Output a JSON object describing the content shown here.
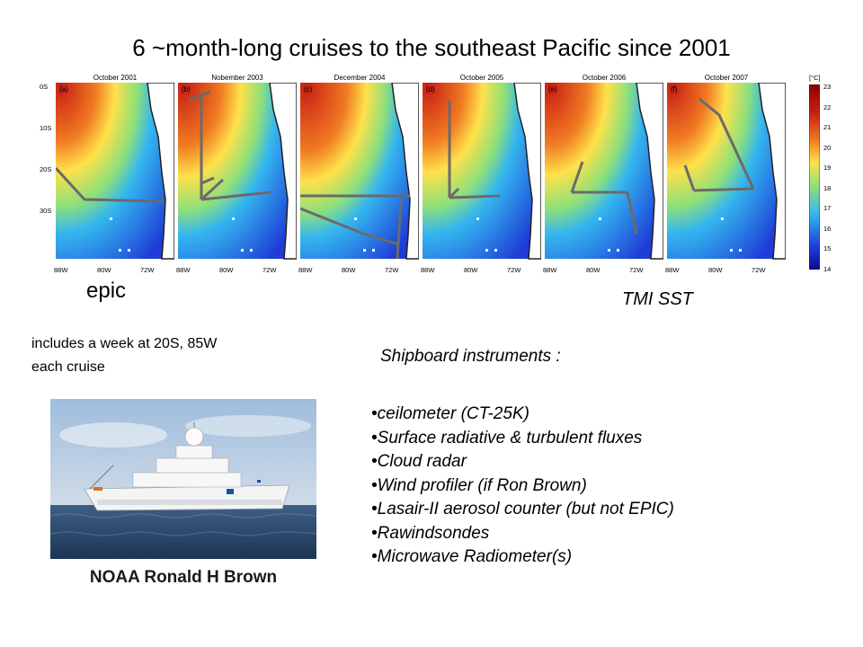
{
  "title": "6 ~month-long cruises to the southeast Pacific since 2001",
  "maps": {
    "panels": [
      {
        "label": "(a)",
        "date": "October 2001"
      },
      {
        "label": "(b)",
        "date": "Nobember 2003"
      },
      {
        "label": "(c)",
        "date": "December 2004"
      },
      {
        "label": "(d)",
        "date": "October 2005"
      },
      {
        "label": "(e)",
        "date": "October 2006"
      },
      {
        "label": "(f)",
        "date": "October 2007"
      }
    ],
    "lon_ticks": [
      "88W",
      "80W",
      "72W"
    ],
    "lat_ticks": [
      "0S",
      "10S",
      "20S",
      "30S"
    ],
    "colorbar_unit": "[°C]",
    "colorbar_ticks": [
      "23",
      "22",
      "21",
      "20",
      "19",
      "18",
      "17",
      "16",
      "15",
      "14"
    ],
    "colors": {
      "warm": "#c81e14",
      "mid": "#ffe14a",
      "cool": "#34b6ef",
      "cold": "#1e3cd7",
      "track": "#6b6b6b"
    }
  },
  "labels": {
    "epic": "epic",
    "tmi": "TMI SST"
  },
  "note": {
    "line1": "includes a week at 20S, 85W",
    "line2": "each cruise"
  },
  "photo": {
    "caption": "NOAA Ronald H Brown"
  },
  "instruments": {
    "heading": "Shipboard instruments :",
    "items": [
      "•ceilometer (CT-25K)",
      "•Surface radiative & turbulent fluxes",
      "•Cloud radar",
      "•Wind profiler (if Ron Brown)",
      "•Lasair-II aerosol counter (but not EPIC)",
      "•Rawindsondes",
      "•Microwave Radiometer(s)"
    ]
  }
}
